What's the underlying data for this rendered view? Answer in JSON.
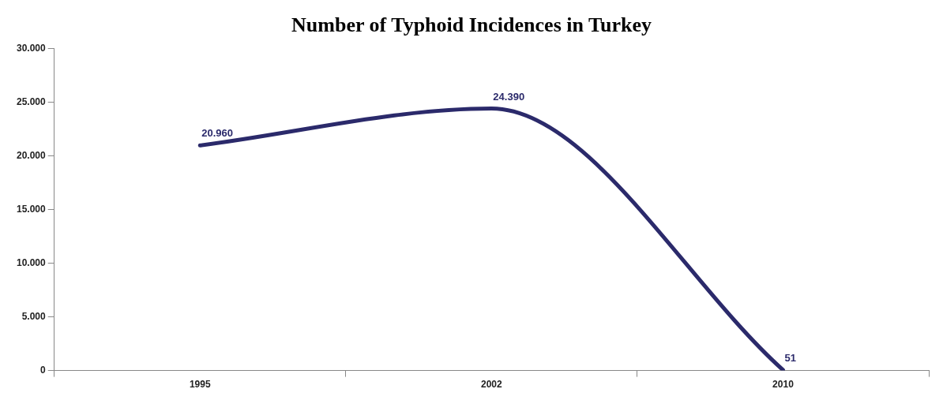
{
  "chart_data": {
    "type": "line",
    "title": "Number of Typhoid Incidences in Turkey",
    "categories": [
      "1995",
      "2002",
      "2010"
    ],
    "series": [
      {
        "color": "#2b2a6b",
        "values": [
          20960,
          24390,
          51
        ],
        "value_labels": [
          "20.960",
          "24.390",
          "51"
        ]
      }
    ],
    "ylim": [
      0,
      30000
    ],
    "yticks": [
      {
        "value": 0,
        "label": "0"
      },
      {
        "value": 5000,
        "label": "5.000"
      },
      {
        "value": 10000,
        "label": "10.000"
      },
      {
        "value": 15000,
        "label": "15.000"
      },
      {
        "value": 20000,
        "label": "20.000"
      },
      {
        "value": 25000,
        "label": "25.000"
      },
      {
        "value": 30000,
        "label": "30.000"
      }
    ],
    "grid": false,
    "legend": false,
    "marker": "none",
    "line_style": "solid"
  }
}
